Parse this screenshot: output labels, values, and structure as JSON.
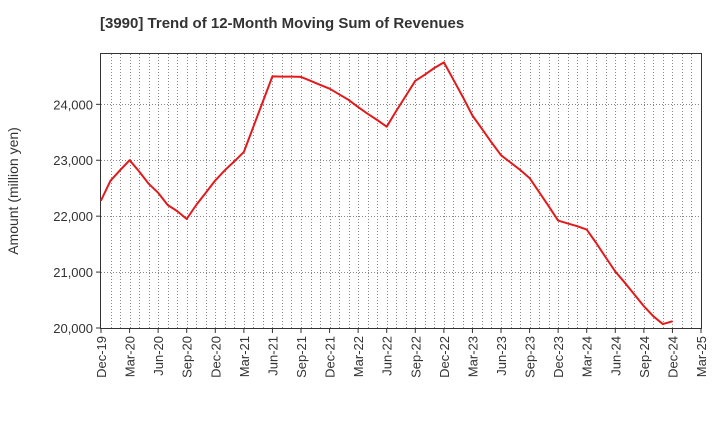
{
  "chart_data": {
    "type": "line",
    "title": "[3990]  Trend of 12-Month Moving Sum of Revenues",
    "ylabel": "Amount (million yen)",
    "xlabel": "",
    "ylim": [
      20000,
      24900
    ],
    "y_ticks": [
      20000,
      21000,
      22000,
      23000,
      24000
    ],
    "y_tick_labels": [
      "20,000",
      "21,000",
      "22,000",
      "23,000",
      "24,000"
    ],
    "x_tick_labels": [
      "Dec-19",
      "Mar-20",
      "Jun-20",
      "Sep-20",
      "Dec-20",
      "Mar-21",
      "Jun-21",
      "Sep-21",
      "Dec-21",
      "Mar-22",
      "Jun-22",
      "Sep-22",
      "Dec-22",
      "Mar-23",
      "Jun-23",
      "Sep-23",
      "Dec-23",
      "Mar-24",
      "Jun-24",
      "Sep-24",
      "Dec-24",
      "Mar-25"
    ],
    "grid": true,
    "line_color": "#e31a1c",
    "series": [
      {
        "x": [
          "Dec-19",
          "Jan-20",
          "Feb-20",
          "Mar-20",
          "Apr-20",
          "May-20",
          "Jun-20",
          "Jul-20",
          "Aug-20",
          "Sep-20",
          "Oct-20",
          "Nov-20",
          "Dec-20",
          "Jan-21",
          "Feb-21",
          "Mar-21",
          "Apr-21",
          "May-21",
          "Jun-21",
          "Jul-21",
          "Aug-21",
          "Sep-21",
          "Oct-21",
          "Nov-21",
          "Dec-21",
          "Jan-22",
          "Feb-22",
          "Mar-22",
          "Apr-22",
          "May-22",
          "Jun-22",
          "Jul-22",
          "Aug-22",
          "Sep-22",
          "Oct-22",
          "Nov-22",
          "Dec-22",
          "Jan-23",
          "Feb-23",
          "Mar-23",
          "Apr-23",
          "May-23",
          "Jun-23",
          "Jul-23",
          "Aug-23",
          "Sep-23",
          "Oct-23",
          "Nov-23",
          "Dec-23",
          "Jan-24",
          "Feb-24",
          "Mar-24",
          "Apr-24",
          "May-24",
          "Jun-24",
          "Jul-24",
          "Aug-24",
          "Sep-24",
          "Oct-24",
          "Nov-24",
          "Dec-24"
        ],
        "values": [
          22280,
          22635,
          22820,
          23000,
          22800,
          22580,
          22420,
          22200,
          22090,
          21950,
          22200,
          22420,
          22640,
          22820,
          22980,
          23150,
          23600,
          24050,
          24500,
          24495,
          24495,
          24490,
          24420,
          24350,
          24280,
          24180,
          24080,
          23950,
          23830,
          23720,
          23600,
          23880,
          24150,
          24420,
          24530,
          24650,
          24750,
          24440,
          24130,
          23800,
          23560,
          23320,
          23090,
          22960,
          22830,
          22680,
          22430,
          22180,
          21920,
          21870,
          21820,
          21760,
          21520,
          21260,
          21010,
          20810,
          20600,
          20390,
          20210,
          20070,
          20120
        ]
      }
    ]
  }
}
